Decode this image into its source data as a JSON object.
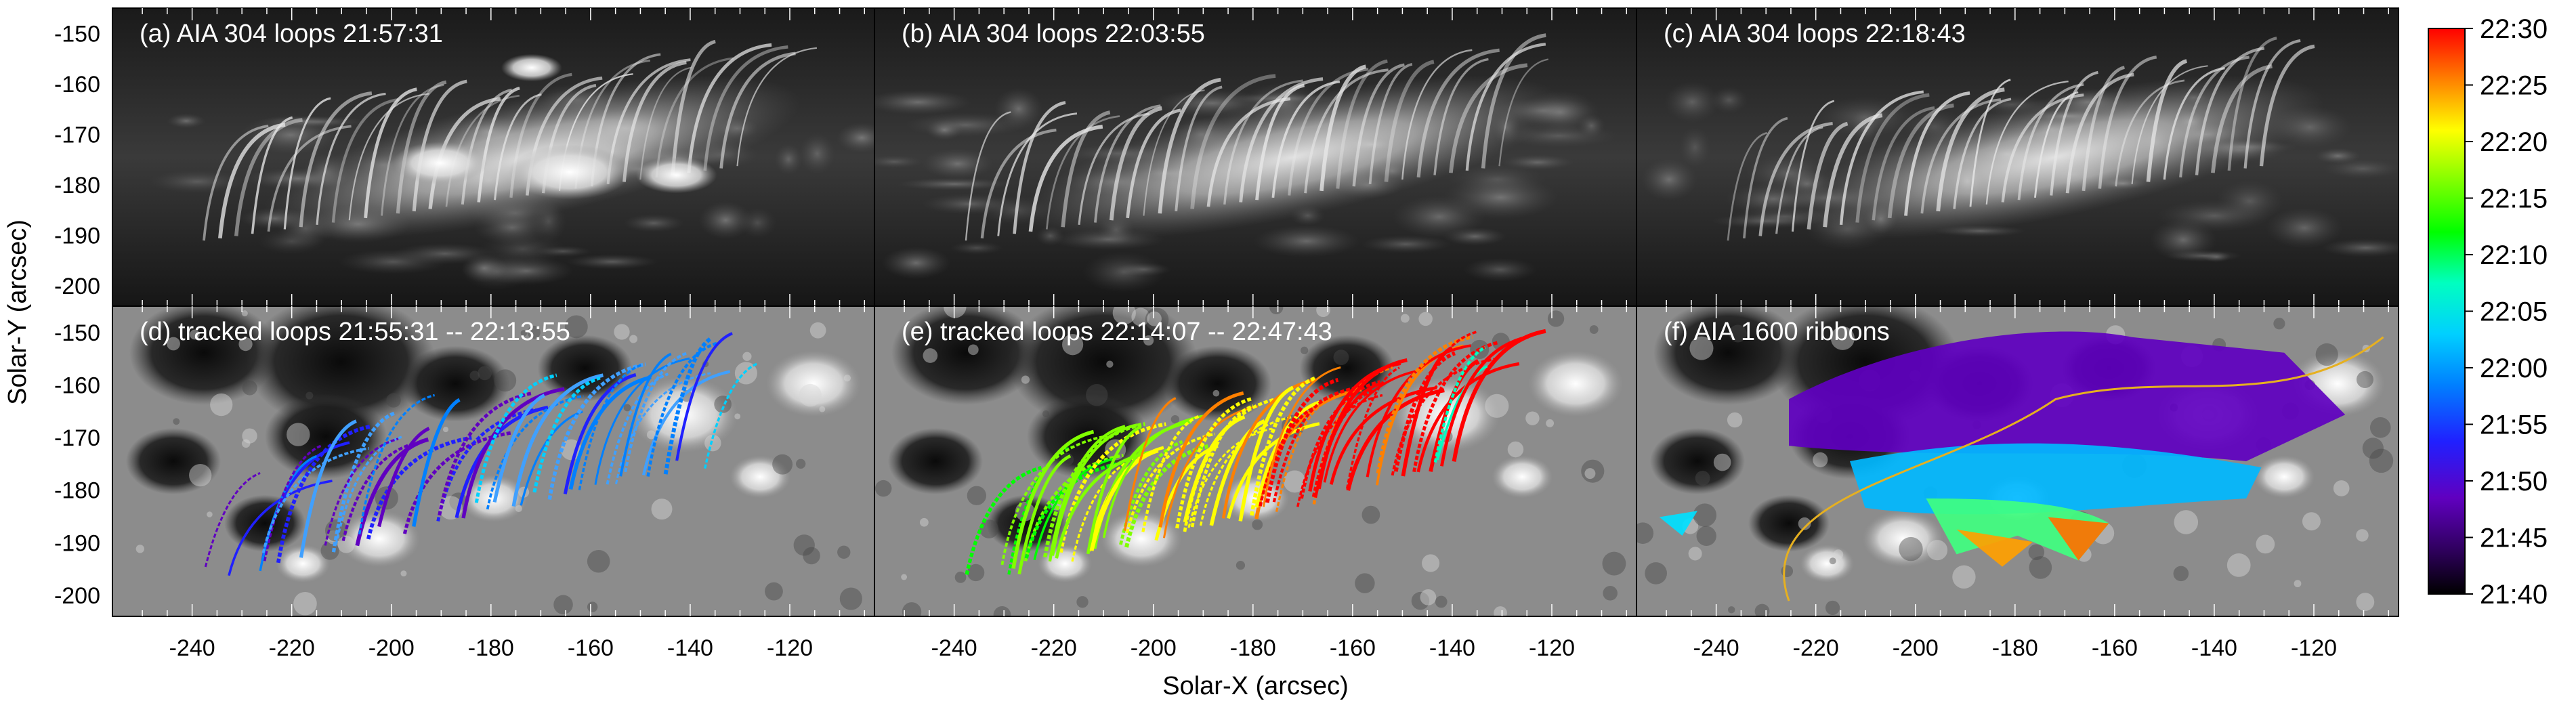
{
  "figure": {
    "panels": [
      {
        "id": "a",
        "title": "(a) AIA 304 loops 21:57:31",
        "kind": "euv"
      },
      {
        "id": "b",
        "title": "(b) AIA 304 loops 22:03:55",
        "kind": "euv"
      },
      {
        "id": "c",
        "title": "(c) AIA 304 loops 22:18:43",
        "kind": "euv"
      },
      {
        "id": "d",
        "title": "(d) tracked loops 21:55:31 -- 22:13:55",
        "kind": "tracked"
      },
      {
        "id": "e",
        "title": "(e) tracked loops 22:14:07 -- 22:47:43",
        "kind": "tracked"
      },
      {
        "id": "f",
        "title": "(f) AIA 1600 ribbons",
        "kind": "ribbons"
      }
    ],
    "x_axis": {
      "label": "Solar-X (arcsec)",
      "ticks": [
        "-240",
        "-220",
        "-200",
        "-180",
        "-160",
        "-140",
        "-120"
      ],
      "tick_values": [
        -240,
        -220,
        -200,
        -180,
        -160,
        -140,
        -120
      ],
      "range": [
        -256,
        -103
      ]
    },
    "y_axis": {
      "label": "Solar-Y (arcsec)",
      "ticks": [
        "-150",
        "-160",
        "-170",
        "-180",
        "-190",
        "-200"
      ],
      "tick_values": [
        -150,
        -160,
        -170,
        -180,
        -190,
        -200
      ],
      "range": [
        -145,
        -204
      ]
    },
    "colorbar": {
      "labels": [
        "22:30",
        "22:25",
        "22:20",
        "22:15",
        "22:10",
        "22:05",
        "22:00",
        "21:55",
        "21:50",
        "21:45",
        "21:40"
      ],
      "colors": [
        "#ff0000",
        "#ff8000",
        "#ffff00",
        "#80ff00",
        "#00ff00",
        "#00ffc0",
        "#00d0ff",
        "#0080ff",
        "#2020ff",
        "#6000c0",
        "#000000"
      ]
    },
    "colors": {
      "contour": "#e6b020",
      "background": "#ffffff"
    }
  }
}
